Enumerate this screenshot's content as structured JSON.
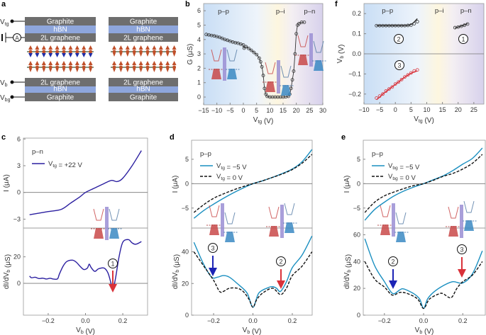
{
  "panel_labels": {
    "a": "a",
    "b": "b",
    "c": "c",
    "d": "d",
    "e": "e",
    "f": "f"
  },
  "panel_a": {
    "top_stack": [
      "Graphite",
      "hBN",
      "2L graphene"
    ],
    "bottom_stack": [
      "2L graphene",
      "hBN",
      "Graphite"
    ],
    "terminals": {
      "top_gate": "V_tg",
      "bias": "V_b",
      "bottom_gate": "V_bg"
    },
    "ammeter": "A",
    "colors": {
      "graphite": "#6e6e6e",
      "hbn": "#8ea6dc",
      "dipole_up": "#c0502a",
      "dipole_down": "#1f2fa8"
    }
  },
  "chart_data": [
    {
      "id": "b",
      "type": "line",
      "title": "",
      "xlabel": "V_tg (V)",
      "ylabel": "G (μS)",
      "xlim": [
        -15,
        30
      ],
      "ylim": [
        -0.54,
        6.5
      ],
      "xticks": [
        -15,
        -10,
        -5,
        0,
        5,
        10,
        15,
        20,
        25,
        30
      ],
      "xticklabels": [
        "−15",
        "−10",
        "−5",
        "0",
        "5",
        "10",
        "15",
        "20",
        "25",
        "30"
      ],
      "yticks": [
        0,
        1,
        2,
        3,
        4,
        5,
        6
      ],
      "yticklabels": [
        "0",
        "1",
        "2",
        "3",
        "4",
        "5",
        "6"
      ],
      "background": "regions",
      "regions": [
        "p–p",
        "p–i",
        "p–n"
      ],
      "series": [
        {
          "name": "G",
          "style": "line-markers",
          "color": "#333333",
          "x": [
            -14,
            -13,
            -12,
            -11,
            -10,
            -9,
            -8,
            -7,
            -6,
            -5,
            -4,
            -3,
            -2,
            -1,
            0,
            0.3,
            1,
            2,
            3,
            4,
            5,
            6,
            6.5,
            7,
            7.5,
            8,
            8.5,
            9,
            10,
            11,
            12,
            13,
            14,
            15,
            16,
            17,
            17.5,
            18,
            18.5,
            19,
            19.5,
            20,
            20.5,
            21,
            22,
            23
          ],
          "y": [
            4.35,
            4.32,
            4.28,
            4.25,
            4.2,
            4.15,
            4.08,
            4.0,
            3.95,
            3.88,
            3.82,
            3.78,
            3.74,
            3.68,
            3.62,
            3.4,
            3.5,
            3.38,
            3.25,
            3.1,
            2.95,
            2.7,
            2.45,
            2.1,
            1.5,
            0.6,
            0.2,
            0.05,
            0,
            0,
            0,
            0,
            0,
            0,
            0.02,
            0.05,
            0.2,
            0.6,
            1.2,
            1.8,
            3.0,
            4.4,
            5.0,
            5.1,
            5.2,
            5.2
          ]
        }
      ],
      "annotations": []
    },
    {
      "id": "f",
      "type": "scatter",
      "title": "",
      "xlabel": "V_tg (V)",
      "ylabel": "V_b (V)",
      "xlim": [
        -10,
        28.2
      ],
      "ylim": [
        -0.25,
        0.25
      ],
      "xticks": [
        -10,
        -5,
        0,
        5,
        10,
        15,
        20,
        25
      ],
      "xticklabels": [
        "−10",
        "−5",
        "0",
        "5",
        "10",
        "15",
        "20",
        "25"
      ],
      "yticks": [
        -0.2,
        -0.1,
        0,
        0.1,
        0.2
      ],
      "yticklabels": [
        "−0.2",
        "−0.1",
        "0.0",
        "0.1",
        "0.2"
      ],
      "background": "regions",
      "zero_line": true,
      "regions": [
        "p–p",
        "p–i",
        "p–n"
      ],
      "series": [
        {
          "name": "2",
          "style": "markers-line",
          "color": "#333333",
          "x": [
            -6,
            -5,
            -4,
            -3,
            -2,
            -1,
            0,
            1,
            2,
            3,
            4,
            5,
            6,
            7
          ],
          "y": [
            0.14,
            0.14,
            0.14,
            0.14,
            0.14,
            0.14,
            0.14,
            0.14,
            0.14,
            0.14,
            0.141,
            0.143,
            0.15,
            0.16
          ],
          "fit_y": [
            0.14,
            0.14,
            0.14,
            0.14,
            0.14,
            0.14,
            0.14,
            0.14,
            0.14,
            0.14,
            0.142,
            0.146,
            0.158,
            0.175
          ]
        },
        {
          "name": "1",
          "style": "markers-line",
          "color": "#333333",
          "x": [
            19,
            20,
            21,
            22,
            23
          ],
          "y": [
            0.13,
            0.133,
            0.137,
            0.142,
            0.148
          ],
          "fit_y": [
            0.128,
            0.133,
            0.138,
            0.144,
            0.15
          ]
        },
        {
          "name": "3",
          "style": "markers-line",
          "color": "#d9323a",
          "x": [
            -6,
            -5,
            -4,
            -3,
            -2,
            -1,
            0,
            1,
            2,
            3,
            4,
            5,
            6,
            7
          ],
          "y": [
            -0.22,
            -0.21,
            -0.2,
            -0.185,
            -0.175,
            -0.165,
            -0.15,
            -0.14,
            -0.128,
            -0.115,
            -0.105,
            -0.095,
            -0.085,
            -0.08
          ],
          "fit_y": [
            -0.228,
            -0.215,
            -0.2,
            -0.188,
            -0.176,
            -0.164,
            -0.152,
            -0.14,
            -0.128,
            -0.116,
            -0.106,
            -0.097,
            -0.09,
            -0.085
          ]
        }
      ],
      "annotations": [
        "2",
        "1",
        "3"
      ]
    },
    {
      "id": "c_top",
      "type": "line",
      "xlabel": "",
      "ylabel": "I (μA)",
      "xlim": [
        -0.333,
        0.333
      ],
      "ylim": [
        -4,
        6.1
      ],
      "yticks": [
        -3,
        0,
        3,
        6
      ],
      "yticklabels": [
        "−3",
        "0",
        "3",
        "6"
      ],
      "zero_line": true,
      "legend": {
        "title": "p–n",
        "entries": [
          "V_tg = +22 V"
        ]
      },
      "series": [
        {
          "name": "V_tg = +22 V",
          "style": "solid",
          "color": "#2b1fa0",
          "x": [
            -0.3,
            -0.2,
            -0.13,
            -0.08,
            -0.03,
            0,
            0.05,
            0.1,
            0.14,
            0.17,
            0.2,
            0.25,
            0.3
          ],
          "y": [
            -2.5,
            -2.15,
            -1.9,
            -1.2,
            -0.5,
            0,
            0.5,
            1.0,
            1.35,
            1.22,
            1.6,
            3.0,
            4.7
          ]
        }
      ]
    },
    {
      "id": "c_bottom",
      "type": "line",
      "xlabel": "V_b (V)",
      "ylabel": "dI/dV_b (μS)",
      "xlim": [
        -0.333,
        0.333
      ],
      "ylim": [
        -24,
        41.7
      ],
      "xticks": [
        -0.2,
        0,
        0.2
      ],
      "xticklabels": [
        "−0.2",
        "0.0",
        "0.2"
      ],
      "yticks": [
        0,
        20
      ],
      "yticklabels": [
        "0",
        "20"
      ],
      "zero_line": true,
      "series": [
        {
          "name": "V_tg = +22 V",
          "style": "solid",
          "color": "#2b1fa0",
          "x": [
            -0.3,
            -0.29,
            -0.27,
            -0.25,
            -0.23,
            -0.21,
            -0.19,
            -0.17,
            -0.15,
            -0.14,
            -0.12,
            -0.1,
            -0.07,
            -0.05,
            -0.03,
            -0.01,
            0.01,
            0.02,
            0.03,
            0.05,
            0.07,
            0.1,
            0.12,
            0.135,
            0.145,
            0.16,
            0.18,
            0.2,
            0.23,
            0.25,
            0.27,
            0.3
          ],
          "y": [
            5.5,
            4.2,
            4.6,
            3.6,
            3.9,
            3.3,
            3.8,
            3.2,
            3.4,
            7,
            13,
            16.5,
            17.5,
            16,
            13,
            10.5,
            11.5,
            14.5,
            12,
            9,
            11,
            11.5,
            8,
            1,
            -5,
            3,
            20,
            31,
            33,
            30.5,
            29.5,
            31.5
          ]
        }
      ],
      "annotations": [
        "1"
      ]
    },
    {
      "id": "d_top",
      "type": "line",
      "xlabel": "",
      "ylabel": "I (μA)",
      "xlim": [
        -0.312,
        0.301
      ],
      "ylim": [
        -9.1,
        8.9
      ],
      "yticks": [
        -5,
        0,
        5
      ],
      "yticklabels": [
        "−5",
        "0",
        "5"
      ],
      "zero_line": true,
      "legend": {
        "title": "p–p",
        "entries": [
          "V_tg = −5 V",
          "V_tg = 0 V"
        ]
      },
      "series": [
        {
          "name": "V_tg = −5 V",
          "style": "solid",
          "color": "#1a8fc0",
          "x": [
            -0.3,
            -0.25,
            -0.2,
            -0.15,
            -0.1,
            -0.05,
            0,
            0.05,
            0.1,
            0.15,
            0.2,
            0.25,
            0.3
          ],
          "y": [
            -7.1,
            -5.5,
            -4.2,
            -3.0,
            -1.9,
            -0.9,
            0,
            0.6,
            1.3,
            2.1,
            3.0,
            4.5,
            7.0
          ]
        },
        {
          "name": "V_tg = 0 V",
          "style": "dashed",
          "color": "#111111",
          "x": [
            -0.3,
            -0.25,
            -0.2,
            -0.15,
            -0.1,
            -0.05,
            0,
            0.05,
            0.1,
            0.15,
            0.2,
            0.25,
            0.3
          ],
          "y": [
            -5.9,
            -4.3,
            -3.0,
            -2.1,
            -1.3,
            -0.6,
            0,
            0.6,
            1.3,
            2.0,
            2.9,
            4.2,
            6.0
          ]
        }
      ]
    },
    {
      "id": "d_bottom",
      "type": "line",
      "xlabel": "V_b (V)",
      "ylabel": "dI/dV_b (μS)",
      "xlim": [
        -0.312,
        0.301
      ],
      "ylim": [
        0,
        55
      ],
      "xticks": [
        -0.2,
        0,
        0.2
      ],
      "xticklabels": [
        "−0.2",
        "0.0",
        "0.2"
      ],
      "yticks": [
        0,
        20,
        40
      ],
      "yticklabels": [
        "0",
        "20",
        "40"
      ],
      "series": [
        {
          "name": "V_tg = −5 V",
          "style": "solid",
          "color": "#1a8fc0",
          "x": [
            -0.3,
            -0.25,
            -0.21,
            -0.18,
            -0.15,
            -0.12,
            -0.08,
            -0.03,
            0,
            0.03,
            0.08,
            0.1,
            0.12,
            0.14,
            0.17,
            0.2,
            0.25,
            0.3
          ],
          "y": [
            46,
            32,
            24,
            24,
            25,
            24,
            20,
            14,
            5,
            14,
            17.5,
            18,
            17,
            15,
            21,
            30,
            38,
            50
          ]
        },
        {
          "name": "V_tg = 0 V",
          "style": "dashed",
          "color": "#111111",
          "x": [
            -0.3,
            -0.25,
            -0.2,
            -0.17,
            -0.15,
            -0.12,
            -0.08,
            -0.05,
            -0.02,
            0,
            0.02,
            0.05,
            0.1,
            0.14,
            0.17,
            0.2,
            0.25,
            0.3
          ],
          "y": [
            40,
            31,
            22,
            15,
            15,
            17,
            17,
            15,
            10,
            5,
            10,
            14,
            17,
            13,
            17,
            25,
            31,
            40
          ]
        }
      ],
      "annotations": [
        "3",
        "2"
      ]
    },
    {
      "id": "e_top",
      "type": "line",
      "xlabel": "",
      "ylabel": "I (μA)",
      "xlim": [
        -0.308,
        0.315
      ],
      "ylim": [
        -9.1,
        8.9
      ],
      "yticks": [
        -5,
        0,
        5
      ],
      "yticklabels": [
        "−5",
        "0",
        "5"
      ],
      "zero_line": true,
      "legend": {
        "title": "p–p",
        "entries": [
          "V_bg = −5 V",
          "V_bg = 0 V"
        ]
      },
      "series": [
        {
          "name": "V_bg = −5 V",
          "style": "solid",
          "color": "#1a8fc0",
          "x": [
            -0.3,
            -0.25,
            -0.2,
            -0.15,
            -0.1,
            -0.05,
            0,
            0.05,
            0.1,
            0.15,
            0.2,
            0.25,
            0.3
          ],
          "y": [
            -7.5,
            -5.3,
            -3.8,
            -2.5,
            -1.5,
            -0.7,
            0,
            0.8,
            1.6,
            2.7,
            4.0,
            5.2,
            7.3
          ]
        },
        {
          "name": "V_bg = 0 V",
          "style": "dashed",
          "color": "#111111",
          "x": [
            -0.3,
            -0.25,
            -0.2,
            -0.15,
            -0.1,
            -0.05,
            0,
            0.05,
            0.1,
            0.15,
            0.2,
            0.25,
            0.3
          ],
          "y": [
            -5.9,
            -3.8,
            -2.5,
            -1.7,
            -1.0,
            -0.4,
            0,
            0.7,
            1.5,
            2.1,
            3.0,
            4.2,
            6.0
          ]
        }
      ]
    },
    {
      "id": "e_bottom",
      "type": "line",
      "xlabel": "V_b (V)",
      "ylabel": "dI/dV_b (μS)",
      "xlim": [
        -0.308,
        0.315
      ],
      "ylim": [
        0,
        65
      ],
      "xticks": [
        -0.2,
        0,
        0.2
      ],
      "xticklabels": [
        "−0.2",
        "0.0",
        "0.2"
      ],
      "yticks": [
        0,
        20,
        40,
        60
      ],
      "yticklabels": [
        "0",
        "20",
        "40",
        "60"
      ],
      "series": [
        {
          "name": "V_bg = −5 V",
          "style": "solid",
          "color": "#1a8fc0",
          "x": [
            -0.3,
            -0.25,
            -0.2,
            -0.17,
            -0.15,
            -0.12,
            -0.1,
            -0.05,
            -0.02,
            0,
            0.02,
            0.05,
            0.1,
            0.15,
            0.2,
            0.25,
            0.3
          ],
          "y": [
            57,
            37,
            25,
            18,
            16,
            19,
            19.5,
            16,
            12,
            5,
            12,
            17,
            22,
            25,
            24,
            31,
            48
          ]
        },
        {
          "name": "V_bg = 0 V",
          "style": "dashed",
          "color": "#111111",
          "x": [
            -0.3,
            -0.25,
            -0.2,
            -0.16,
            -0.12,
            -0.08,
            -0.03,
            0,
            0.03,
            0.08,
            0.1,
            0.14,
            0.17,
            0.2,
            0.25,
            0.3
          ],
          "y": [
            40,
            27,
            21,
            15,
            17,
            16,
            12,
            5,
            12,
            16,
            16,
            13,
            20,
            25,
            30,
            40
          ]
        }
      ],
      "annotations": [
        "2",
        "3"
      ]
    }
  ]
}
